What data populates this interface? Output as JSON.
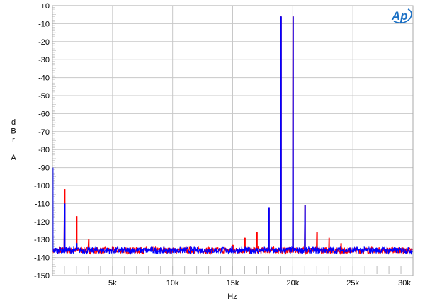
{
  "chart_data": {
    "type": "line",
    "title": "",
    "xlabel": "Hz",
    "ylabel": [
      "d",
      "B",
      "r",
      "",
      "A"
    ],
    "xlim": [
      0,
      30000
    ],
    "ylim": [
      -150,
      0
    ],
    "grid": true,
    "x_ticks": [
      {
        "v": 5000,
        "label": "5k"
      },
      {
        "v": 10000,
        "label": "10k"
      },
      {
        "v": 15000,
        "label": "15k"
      },
      {
        "v": 20000,
        "label": "20k"
      },
      {
        "v": 25000,
        "label": "25k"
      },
      {
        "v": 30000,
        "label": "30k"
      }
    ],
    "y_ticks": [
      {
        "v": 0,
        "label": "+0"
      },
      {
        "v": -10,
        "label": "-10"
      },
      {
        "v": -20,
        "label": "-20"
      },
      {
        "v": -30,
        "label": "-30"
      },
      {
        "v": -40,
        "label": "-40"
      },
      {
        "v": -50,
        "label": "-50"
      },
      {
        "v": -60,
        "label": "-60"
      },
      {
        "v": -70,
        "label": "-70"
      },
      {
        "v": -80,
        "label": "-80"
      },
      {
        "v": -90,
        "label": "-90"
      },
      {
        "v": -100,
        "label": "-100"
      },
      {
        "v": -110,
        "label": "-110"
      },
      {
        "v": -120,
        "label": "-120"
      },
      {
        "v": -130,
        "label": "-130"
      },
      {
        "v": -140,
        "label": "-140"
      },
      {
        "v": -150,
        "label": "-150"
      }
    ],
    "noise_floor_db": -136,
    "series": [
      {
        "color": "#ff0000",
        "peaks": [
          [
            1000,
            -102
          ],
          [
            2000,
            -117
          ],
          [
            3000,
            -130
          ],
          [
            15000,
            -133
          ],
          [
            16000,
            -129
          ],
          [
            17000,
            -126
          ],
          [
            18000,
            -112
          ],
          [
            19000,
            -6
          ],
          [
            20000,
            -6
          ],
          [
            21000,
            -111
          ],
          [
            22000,
            -126
          ],
          [
            23000,
            -129
          ],
          [
            24000,
            -132
          ]
        ]
      },
      {
        "color": "#0000ff",
        "peaks": [
          [
            0,
            -90
          ],
          [
            1000,
            -110
          ],
          [
            2000,
            -132
          ],
          [
            18000,
            -112
          ],
          [
            19000,
            -6
          ],
          [
            20000,
            -6
          ],
          [
            21000,
            -111
          ]
        ]
      }
    ]
  },
  "logo": {
    "text": "Ap",
    "color": "#1a6fc4"
  }
}
